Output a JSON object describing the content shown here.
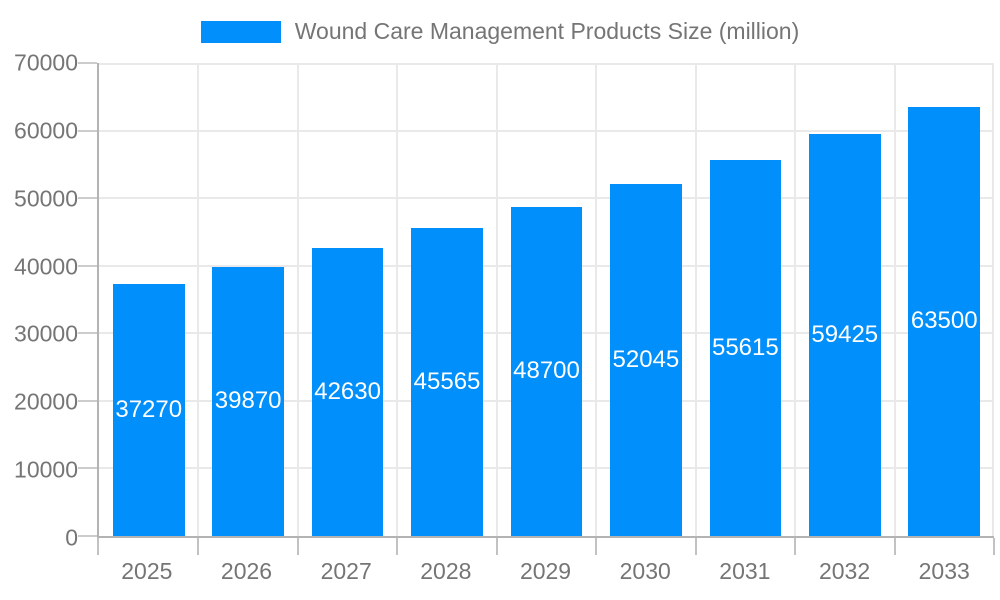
{
  "chart_data": {
    "type": "bar",
    "title": "Wound Care Management Products Size (million)",
    "categories": [
      "2025",
      "2026",
      "2027",
      "2028",
      "2029",
      "2030",
      "2031",
      "2032",
      "2033"
    ],
    "values": [
      37270,
      39870,
      42630,
      45565,
      48700,
      52045,
      55615,
      59425,
      63500
    ],
    "xlabel": "",
    "ylabel": "",
    "ylim": [
      0,
      70000
    ],
    "yticks": [
      0,
      10000,
      20000,
      30000,
      40000,
      50000,
      60000,
      70000
    ],
    "grid": true,
    "legend_position": "top",
    "colors": {
      "bar": "#008FFB",
      "bar_value_label": "#ffffff",
      "axis_text": "#757575",
      "axis_line": "#b3b3b3",
      "gridline": "#e9e9e9"
    }
  }
}
